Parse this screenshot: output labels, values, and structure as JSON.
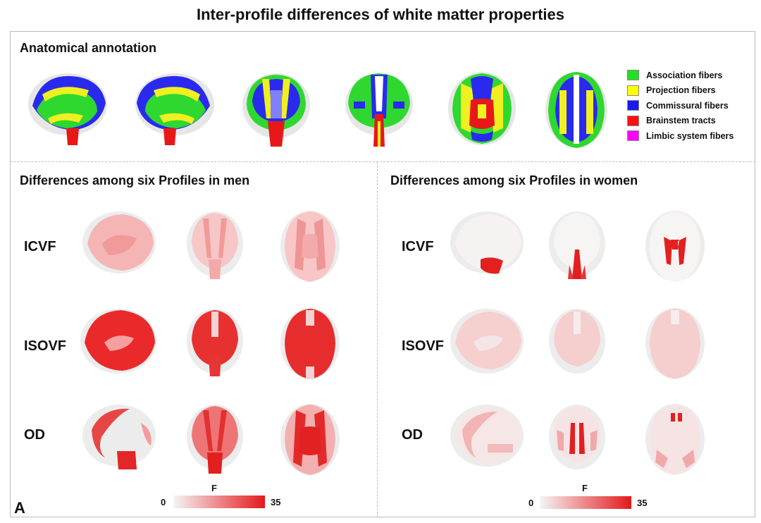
{
  "title": "Inter-profile differences of white matter properties",
  "annotation": {
    "title": "Anatomical annotation",
    "legend": [
      {
        "label": "Association fibers",
        "color": "#22e022"
      },
      {
        "label": "Projection fibers",
        "color": "#ffff00"
      },
      {
        "label": "Commissural fibers",
        "color": "#1a1aee"
      },
      {
        "label": "Brainstem tracts",
        "color": "#ff1010"
      },
      {
        "label": "Limbic system fibers",
        "color": "#ff00ff"
      }
    ]
  },
  "men": {
    "title": "Differences among six Profiles in men",
    "rows": [
      {
        "label": "ICVF"
      },
      {
        "label": "ISOVF"
      },
      {
        "label": "OD"
      }
    ],
    "colorbar": {
      "title": "F",
      "min": "0",
      "max": "35"
    }
  },
  "women": {
    "title": "Differences among six Profiles in women",
    "rows": [
      {
        "label": "ICVF"
      },
      {
        "label": "ISOVF"
      },
      {
        "label": "OD"
      }
    ],
    "colorbar": {
      "title": "F",
      "min": "0",
      "max": "35"
    }
  },
  "panel_letter": "A",
  "colors": {
    "scale_low": "#f3f3f3",
    "scale_high": "#e3191c",
    "brain_shell": "#e6e6e6"
  }
}
